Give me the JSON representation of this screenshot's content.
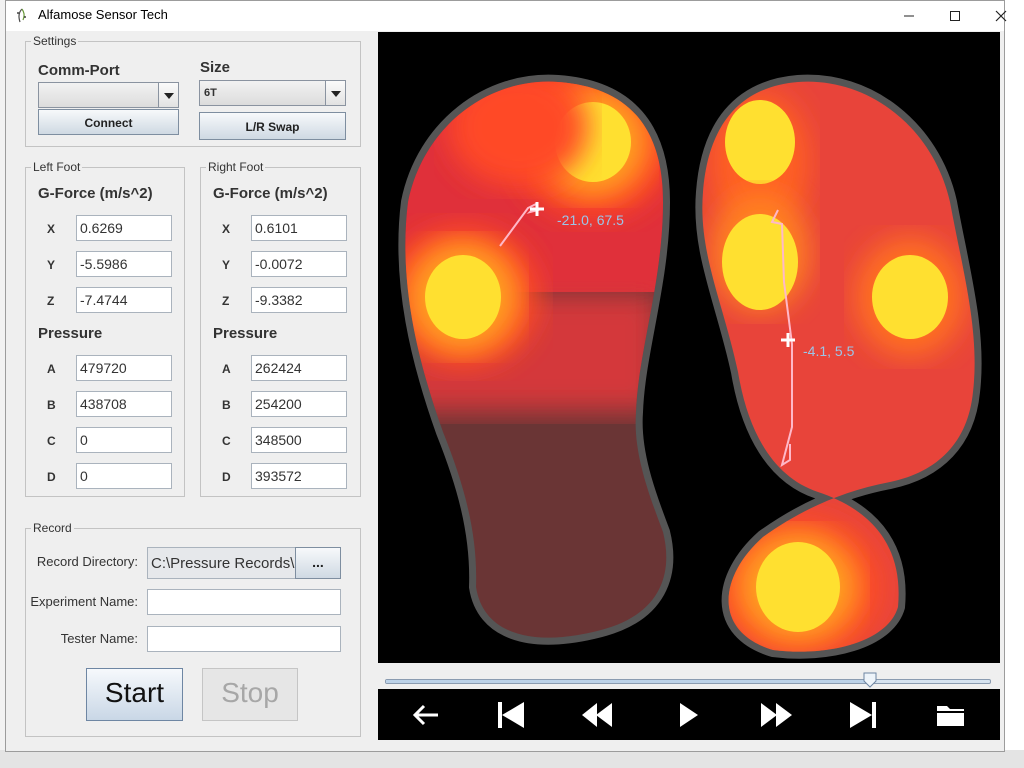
{
  "window": {
    "title": "Alfamose Sensor Tech"
  },
  "settings": {
    "title": "Settings",
    "comm_port_label": "Comm-Port",
    "comm_port_value": "",
    "size_label": "Size",
    "size_value": "6T",
    "connect_label": "Connect",
    "lr_swap_label": "L/R Swap"
  },
  "left_foot": {
    "title": "Left Foot",
    "gforce_label": "G-Force (m/s^2)",
    "x_label": "X",
    "x": "0.6269",
    "y_label": "Y",
    "y": "-5.5986",
    "z_label": "Z",
    "z": "-7.4744",
    "pressure_label": "Pressure",
    "a_label": "A",
    "a": "479720",
    "b_label": "B",
    "b": "438708",
    "c_label": "C",
    "c": "0",
    "d_label": "D",
    "d": "0"
  },
  "right_foot": {
    "title": "Right Foot",
    "gforce_label": "G-Force (m/s^2)",
    "x_label": "X",
    "x": "0.6101",
    "y_label": "Y",
    "y": "-0.0072",
    "z_label": "Z",
    "z": "-9.3382",
    "pressure_label": "Pressure",
    "a_label": "A",
    "a": "262424",
    "b_label": "B",
    "b": "254200",
    "c_label": "C",
    "c": "348500",
    "d_label": "D",
    "d": "393572"
  },
  "record": {
    "title": "Record",
    "directory_label": "Record Directory:",
    "directory_value": "C:\\Pressure Records\\",
    "browse_label": "...",
    "experiment_label": "Experiment Name:",
    "experiment_value": "",
    "tester_label": "Tester Name:",
    "tester_value": "",
    "start_label": "Start",
    "stop_label": "Stop"
  },
  "visualization": {
    "left_cop_label": "-21.0, 67.5",
    "right_cop_label": "-4.1, 5.5",
    "playback_progress_percent": 80,
    "label_color": "#9cc5e8",
    "trail_color": "#ffb8c8"
  },
  "playback": {
    "icons": [
      "back-arrow-icon",
      "skip-start-icon",
      "rewind-icon",
      "play-icon",
      "fast-forward-icon",
      "skip-end-icon",
      "folder-icon"
    ]
  }
}
